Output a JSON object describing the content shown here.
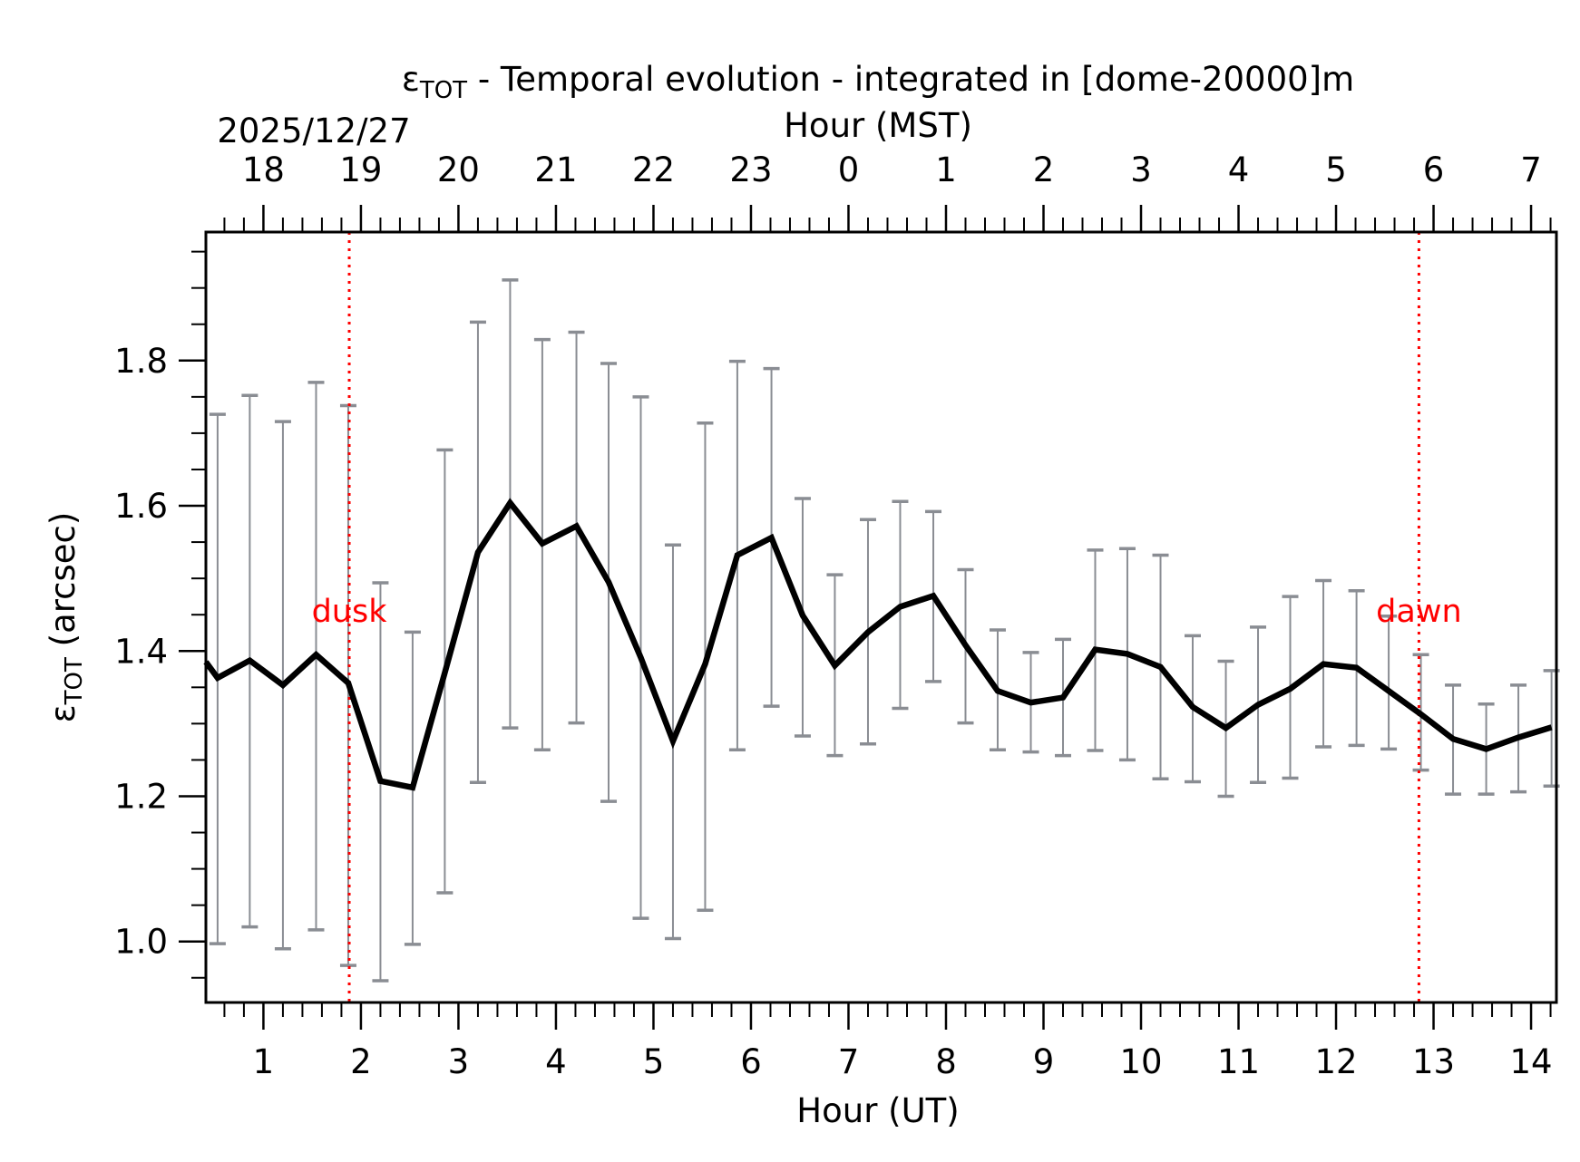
{
  "chart_data": {
    "type": "line",
    "title": "ε_TOT - Temporal evolution - integrated in [dome-20000]m",
    "title_parts": {
      "symbol": "ε",
      "subscript": "TOT",
      "rest": " - Temporal evolution - integrated in [dome-20000]m"
    },
    "xlabel": "Hour (UT)",
    "xlabel_top": "Hour (MST)",
    "date_label": "2025/12/27",
    "ylabel": "ε_TOT (arcsec)",
    "ylabel_parts": {
      "symbol": "ε",
      "subscript": "TOT",
      "rest": " (arcsec)"
    },
    "xlim": [
      0.41,
      14.26
    ],
    "ylim": [
      0.916,
      1.977
    ],
    "x_ticks": [
      1,
      2,
      3,
      4,
      5,
      6,
      7,
      8,
      9,
      10,
      11,
      12,
      13,
      14
    ],
    "x_tick_labels": [
      "1",
      "2",
      "3",
      "4",
      "5",
      "6",
      "7",
      "8",
      "9",
      "10",
      "11",
      "12",
      "13",
      "14"
    ],
    "x_top_ticks": [
      1,
      2,
      3,
      4,
      5,
      6,
      7,
      8,
      9,
      10,
      11,
      12,
      13,
      14
    ],
    "x_top_tick_labels": [
      "18",
      "19",
      "20",
      "21",
      "22",
      "23",
      "0",
      "1",
      "2",
      "3",
      "4",
      "5",
      "6",
      "7"
    ],
    "x_minor_step": 0.2,
    "y_ticks": [
      1.0,
      1.2,
      1.4,
      1.6,
      1.8
    ],
    "y_tick_labels": [
      "1.0",
      "1.2",
      "1.4",
      "1.6",
      "1.8"
    ],
    "y_minor_step": 0.05,
    "grid": false,
    "series": [
      {
        "name": "ε_TOT",
        "color": "#000000",
        "x": [
          0.41,
          0.53,
          0.86,
          1.2,
          1.54,
          1.87,
          2.2,
          2.53,
          2.86,
          3.2,
          3.53,
          3.86,
          4.21,
          4.54,
          4.87,
          5.2,
          5.53,
          5.86,
          6.21,
          6.53,
          6.86,
          7.2,
          7.53,
          7.87,
          8.2,
          8.53,
          8.87,
          9.2,
          9.53,
          9.86,
          10.2,
          10.53,
          10.87,
          11.2,
          11.53,
          11.87,
          12.21,
          12.54,
          12.87,
          13.2,
          13.54,
          13.87,
          14.21
        ],
        "y": [
          1.385,
          1.363,
          1.387,
          1.353,
          1.395,
          1.356,
          1.221,
          1.212,
          1.37,
          1.536,
          1.604,
          1.548,
          1.572,
          1.495,
          1.391,
          1.276,
          1.382,
          1.532,
          1.556,
          1.449,
          1.38,
          1.426,
          1.461,
          1.476,
          1.408,
          1.345,
          1.329,
          1.336,
          1.402,
          1.396,
          1.378,
          1.323,
          1.294,
          1.326,
          1.348,
          1.382,
          1.377,
          1.345,
          1.313,
          1.279,
          1.265,
          1.281,
          1.295
        ]
      }
    ],
    "error_bars": {
      "color": "#8a8d93",
      "x": [
        0.53,
        0.86,
        1.2,
        1.54,
        1.87,
        2.2,
        2.53,
        2.86,
        3.2,
        3.53,
        3.86,
        4.21,
        4.54,
        4.87,
        5.2,
        5.53,
        5.86,
        6.21,
        6.53,
        6.86,
        7.2,
        7.53,
        7.87,
        8.2,
        8.53,
        8.87,
        9.2,
        9.53,
        9.86,
        10.2,
        10.53,
        10.87,
        11.2,
        11.53,
        11.87,
        12.21,
        12.54,
        12.87,
        13.2,
        13.54,
        13.87,
        14.21
      ],
      "upper": [
        1.726,
        1.752,
        1.716,
        1.77,
        1.738,
        1.494,
        1.426,
        1.677,
        1.853,
        1.911,
        1.829,
        1.839,
        1.796,
        1.75,
        1.546,
        1.714,
        1.799,
        1.789,
        1.61,
        1.505,
        1.581,
        1.606,
        1.592,
        1.512,
        1.429,
        1.398,
        1.416,
        1.539,
        1.541,
        1.532,
        1.421,
        1.386,
        1.433,
        1.475,
        1.497,
        1.483,
        1.448,
        1.395,
        1.353,
        1.327,
        1.353,
        1.373
      ],
      "lower": [
        0.997,
        1.02,
        0.99,
        1.016,
        0.967,
        0.946,
        0.996,
        1.067,
        1.219,
        1.294,
        1.264,
        1.301,
        1.193,
        1.032,
        1.004,
        1.043,
        1.264,
        1.324,
        1.283,
        1.256,
        1.272,
        1.321,
        1.358,
        1.301,
        1.264,
        1.261,
        1.256,
        1.263,
        1.25,
        1.224,
        1.22,
        1.2,
        1.219,
        1.225,
        1.268,
        1.27,
        1.265,
        1.236,
        1.203,
        1.203,
        1.206,
        1.214
      ]
    },
    "annotations": [
      {
        "type": "vline",
        "name": "dusk",
        "x": 1.88,
        "color": "#ff0000",
        "style": "dotted",
        "label": "dusk",
        "label_y": 1.44
      },
      {
        "type": "vline",
        "name": "dawn",
        "x": 12.85,
        "color": "#ff0000",
        "style": "dotted",
        "label": "dawn",
        "label_y": 1.44
      }
    ]
  }
}
